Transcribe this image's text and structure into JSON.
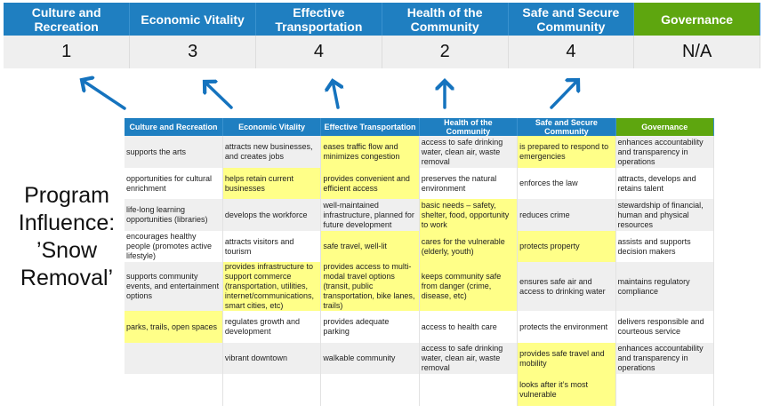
{
  "categories": [
    "Culture and Recreation",
    "Economic Vitality",
    "Effective Transportation",
    "Health of the Community",
    "Safe and Secure Community",
    "Governance"
  ],
  "scores": [
    "1",
    "3",
    "4",
    "2",
    "4",
    "N/A"
  ],
  "program_label": "Program Influence: ’Snow Removal’",
  "colors": {
    "header_blue": "#1f7fc1",
    "governance_green": "#5ea60f",
    "highlight_yellow": "#ffff88",
    "arrow": "#1573be"
  },
  "matrix": {
    "rows": [
      [
        {
          "t": "supports the arts"
        },
        {
          "t": "attracts new businesses, and creates jobs"
        },
        {
          "t": "eases traffic flow and minimizes congestion",
          "h": true
        },
        {
          "t": "access to safe drinking water, clean air, waste removal"
        },
        {
          "t": "is prepared to respond to emergencies",
          "h": true
        },
        {
          "t": "enhances accountability and transparency in operations"
        }
      ],
      [
        {
          "t": "opportunities for cultural enrichment"
        },
        {
          "t": "helps retain current businesses",
          "h": true
        },
        {
          "t": "provides convenient and efficient access",
          "h": true
        },
        {
          "t": "preserves the natural environment"
        },
        {
          "t": "enforces the law"
        },
        {
          "t": "attracts, develops and retains talent"
        }
      ],
      [
        {
          "t": "life-long learning opportunities (libraries)"
        },
        {
          "t": "develops the workforce"
        },
        {
          "t": "well-maintained infrastructure, planned for future development"
        },
        {
          "t": "basic needs – safety, shelter, food, opportunity to work",
          "h": true
        },
        {
          "t": "reduces crime"
        },
        {
          "t": "stewardship of financial, human and physical resources"
        }
      ],
      [
        {
          "t": "encourages healthy people (promotes active lifestyle)"
        },
        {
          "t": "attracts visitors and tourism"
        },
        {
          "t": "safe travel, well-lit",
          "h": true
        },
        {
          "t": "cares for the vulnerable (elderly, youth)",
          "h": true
        },
        {
          "t": "protects property",
          "h": true
        },
        {
          "t": "assists and supports decision makers"
        }
      ],
      [
        {
          "t": "supports community events, and entertainment options"
        },
        {
          "t": "provides infrastructure to support commerce (transportation, utilities, internet/communications, smart cities, etc)",
          "h": true
        },
        {
          "t": "provides access to multi-modal travel options (transit, public transportation, bike lanes, trails)",
          "h": true
        },
        {
          "t": "keeps community safe from danger (crime, disease, etc)",
          "h": true
        },
        {
          "t": "ensures safe air and access to drinking water"
        },
        {
          "t": "maintains regulatory compliance"
        }
      ],
      [
        {
          "t": "parks, trails, open spaces",
          "h": true
        },
        {
          "t": "regulates growth and development"
        },
        {
          "t": "provides adequate parking"
        },
        {
          "t": "access to health care"
        },
        {
          "t": "protects the environment"
        },
        {
          "t": "delivers responsible and courteous service"
        }
      ],
      [
        {
          "t": ""
        },
        {
          "t": "vibrant downtown"
        },
        {
          "t": "walkable community"
        },
        {
          "t": "access to safe drinking water, clean air, waste removal"
        },
        {
          "t": "provides safe travel and mobility",
          "h": true
        },
        {
          "t": "enhances accountability and transparency in operations"
        }
      ],
      [
        {
          "t": ""
        },
        {
          "t": ""
        },
        {
          "t": ""
        },
        {
          "t": ""
        },
        {
          "t": "looks after it’s most vulnerable",
          "h": true
        },
        {
          "t": ""
        }
      ]
    ]
  }
}
